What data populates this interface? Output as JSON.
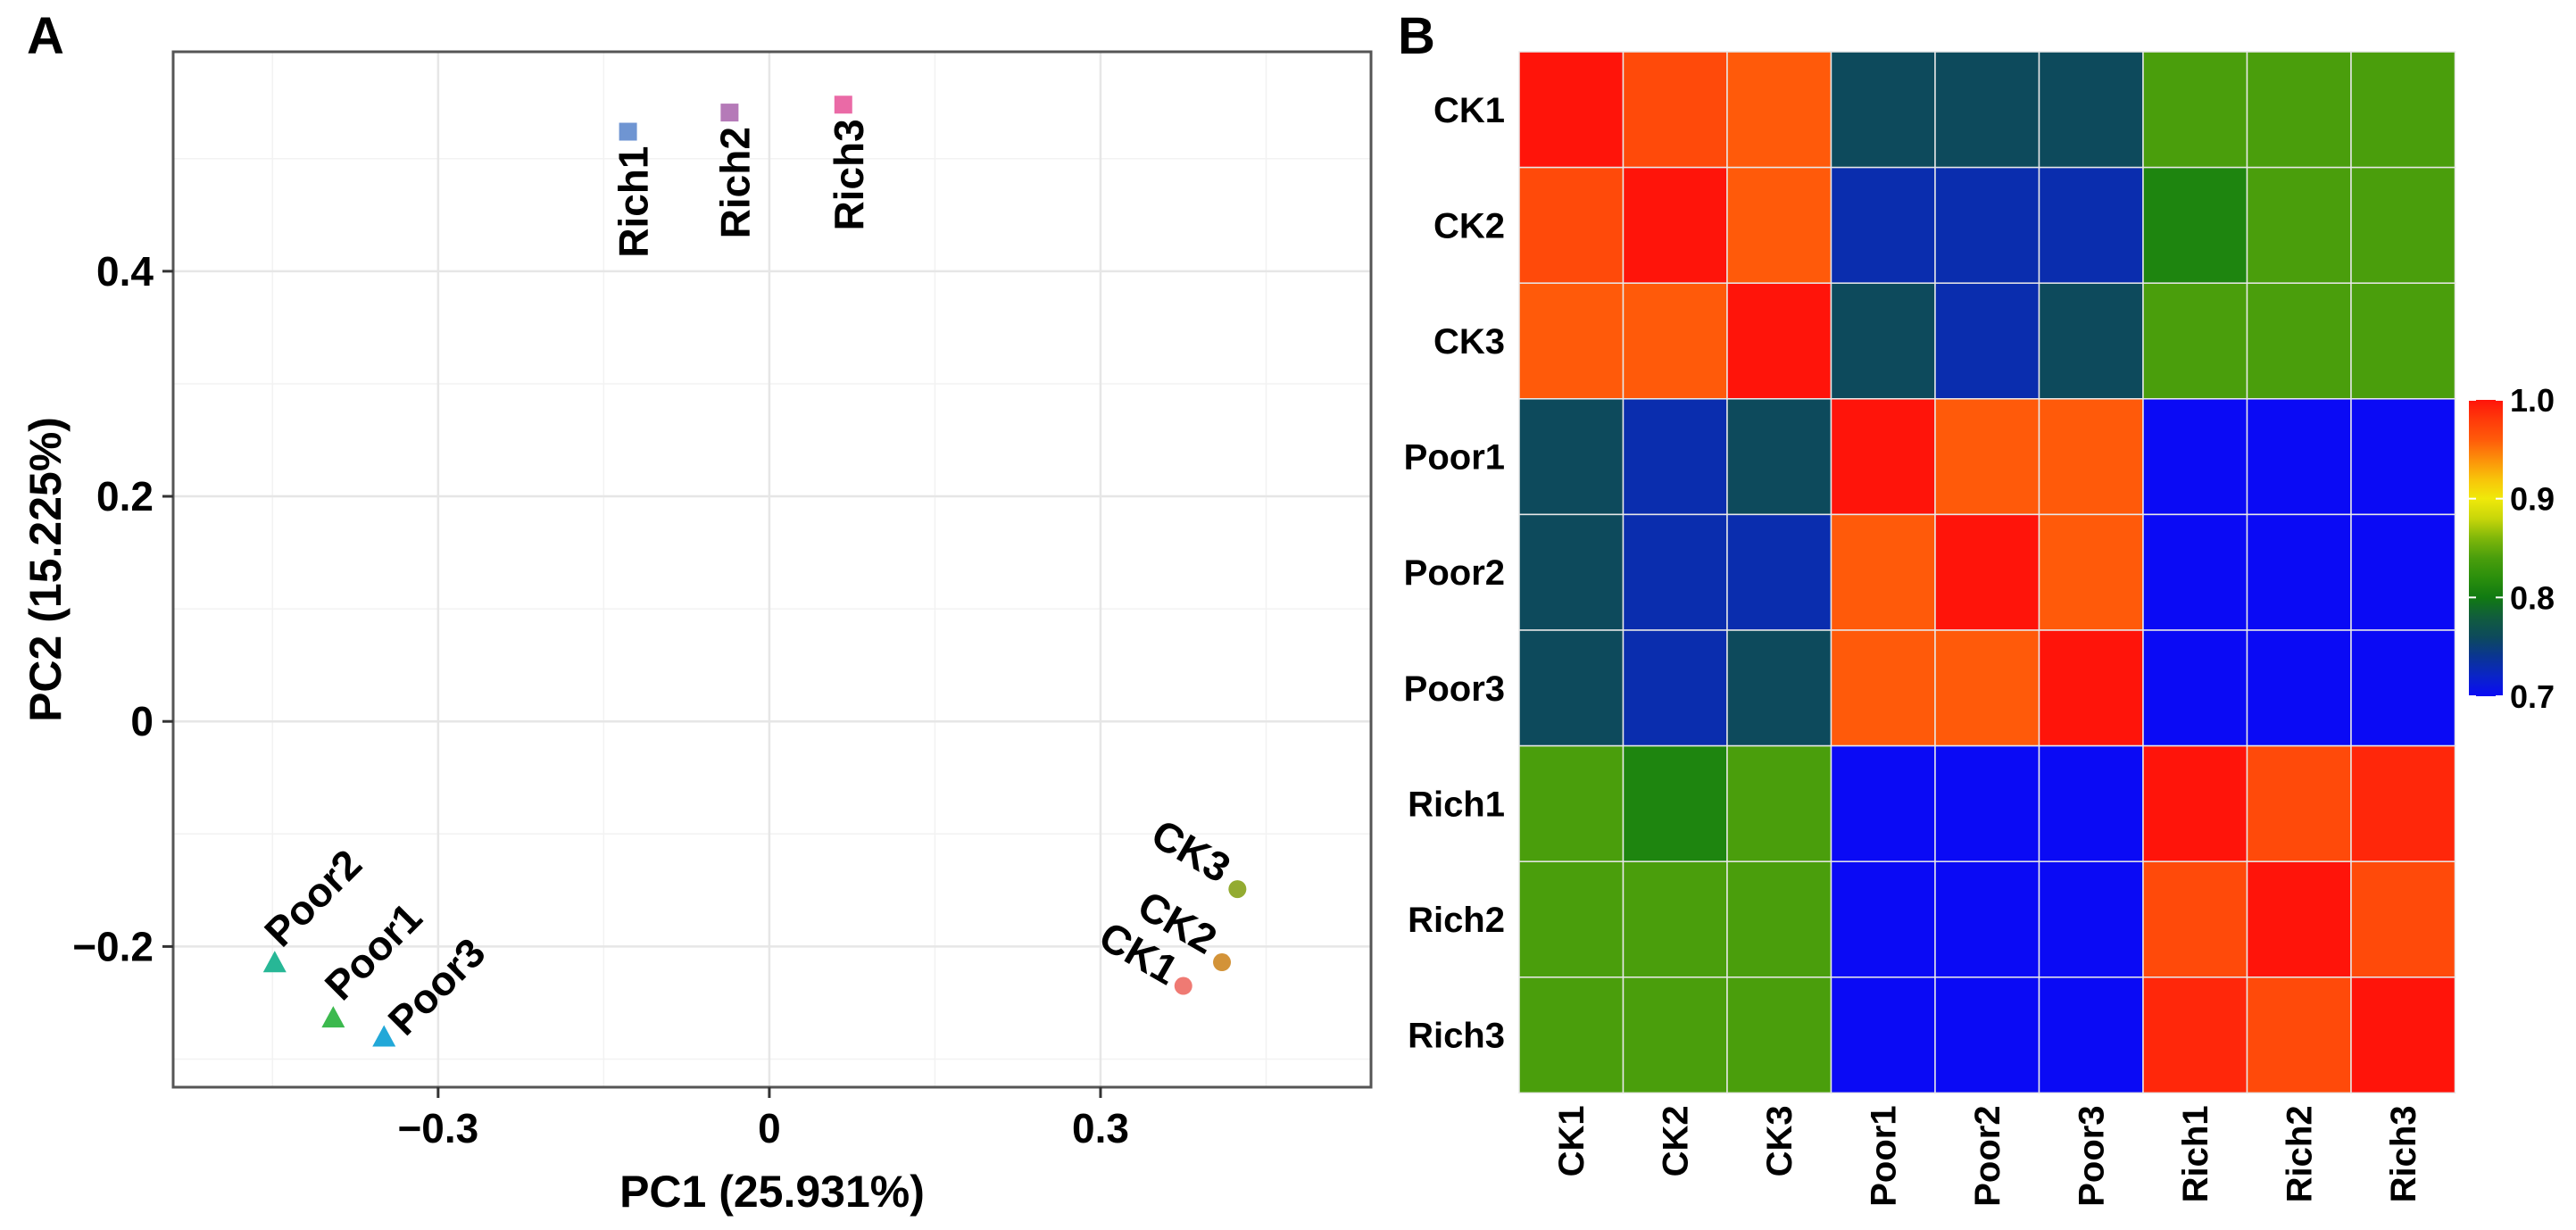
{
  "chart_data": [
    {
      "panel": "A",
      "type": "scatter",
      "title": "",
      "xlabel": "PC1 (25.931%)",
      "ylabel": "PC2 (15.225%)",
      "xlim": [
        -0.54,
        0.545
      ],
      "ylim": [
        -0.325,
        0.595
      ],
      "xticks": [
        -0.3,
        0,
        0.3
      ],
      "xtick_labels": [
        "−0.3",
        "0",
        "0.3"
      ],
      "yticks": [
        -0.2,
        0,
        0.2,
        0.4
      ],
      "ytick_labels": [
        "−0.2",
        "0",
        "0.2",
        "0.4"
      ],
      "grid": true,
      "points": [
        {
          "name": "Rich1",
          "x": -0.128,
          "y": 0.524,
          "color": "#6f95d2",
          "shape": "square",
          "label_angle": -90
        },
        {
          "name": "Rich2",
          "x": -0.036,
          "y": 0.541,
          "color": "#b57ab8",
          "shape": "square",
          "label_angle": -90
        },
        {
          "name": "Rich3",
          "x": 0.067,
          "y": 0.548,
          "color": "#ea6aa6",
          "shape": "square",
          "label_angle": -90
        },
        {
          "name": "Poor2",
          "x": -0.448,
          "y": -0.215,
          "color": "#27b796",
          "shape": "triangle",
          "label_angle": -45
        },
        {
          "name": "Poor1",
          "x": -0.395,
          "y": -0.264,
          "color": "#3cb94e",
          "shape": "triangle",
          "label_angle": -45
        },
        {
          "name": "Poor3",
          "x": -0.349,
          "y": -0.281,
          "color": "#22a8d8",
          "shape": "triangle",
          "label_angle": -45
        },
        {
          "name": "CK3",
          "x": 0.424,
          "y": -0.149,
          "color": "#93ab31",
          "shape": "circle",
          "label_angle": 30
        },
        {
          "name": "CK2",
          "x": 0.41,
          "y": -0.214,
          "color": "#d39338",
          "shape": "circle",
          "label_angle": 30
        },
        {
          "name": "CK1",
          "x": 0.375,
          "y": -0.235,
          "color": "#ef7a73",
          "shape": "circle",
          "label_angle": 30
        }
      ]
    },
    {
      "panel": "B",
      "type": "heatmap",
      "title": "",
      "rows": [
        "CK1",
        "CK2",
        "CK3",
        "Poor1",
        "Poor2",
        "Poor3",
        "Rich1",
        "Rich2",
        "Rich3"
      ],
      "columns": [
        "CK1",
        "CK2",
        "CK3",
        "Poor1",
        "Poor2",
        "Poor3",
        "Rich1",
        "Rich2",
        "Rich3"
      ],
      "values": [
        [
          1.0,
          0.97,
          0.96,
          0.76,
          0.76,
          0.76,
          0.84,
          0.84,
          0.84
        ],
        [
          0.97,
          1.0,
          0.96,
          0.73,
          0.73,
          0.73,
          0.81,
          0.84,
          0.84
        ],
        [
          0.96,
          0.96,
          1.0,
          0.76,
          0.73,
          0.76,
          0.84,
          0.84,
          0.84
        ],
        [
          0.76,
          0.73,
          0.76,
          1.0,
          0.96,
          0.96,
          0.7,
          0.7,
          0.7
        ],
        [
          0.76,
          0.73,
          0.73,
          0.96,
          1.0,
          0.96,
          0.7,
          0.7,
          0.7
        ],
        [
          0.76,
          0.73,
          0.76,
          0.96,
          0.96,
          1.0,
          0.7,
          0.7,
          0.7
        ],
        [
          0.84,
          0.81,
          0.84,
          0.7,
          0.7,
          0.7,
          1.0,
          0.97,
          0.99
        ],
        [
          0.84,
          0.84,
          0.84,
          0.7,
          0.7,
          0.7,
          0.97,
          1.0,
          0.97
        ],
        [
          0.84,
          0.84,
          0.84,
          0.7,
          0.7,
          0.7,
          0.99,
          0.97,
          1.0
        ]
      ],
      "colorbar": {
        "range": [
          0.7,
          1.0
        ],
        "ticks": [
          1.0,
          0.9,
          0.8,
          0.7
        ],
        "tick_labels": [
          "1.0",
          "0.9",
          "0.8",
          "0.7"
        ],
        "stops": [
          {
            "v": 0.7,
            "color": "#0a0af5"
          },
          {
            "v": 0.72,
            "color": "#0a24c8"
          },
          {
            "v": 0.74,
            "color": "#0a3593"
          },
          {
            "v": 0.76,
            "color": "#0d4a5c"
          },
          {
            "v": 0.78,
            "color": "#115d3d"
          },
          {
            "v": 0.8,
            "color": "#117a12"
          },
          {
            "v": 0.82,
            "color": "#2b8f0c"
          },
          {
            "v": 0.84,
            "color": "#4a9e0c"
          },
          {
            "v": 0.86,
            "color": "#7fb70a"
          },
          {
            "v": 0.88,
            "color": "#c8d60a"
          },
          {
            "v": 0.9,
            "color": "#f0e90a"
          },
          {
            "v": 0.92,
            "color": "#f8c30a"
          },
          {
            "v": 0.94,
            "color": "#fc8f0a"
          },
          {
            "v": 0.96,
            "color": "#ff5a0a"
          },
          {
            "v": 0.98,
            "color": "#ff3a0a"
          },
          {
            "v": 1.0,
            "color": "#ff140a"
          }
        ]
      }
    }
  ],
  "panels": {
    "a": "A",
    "b": "B"
  },
  "colors": {
    "plot_border": "#555555",
    "grid_major": "#e6e6e6",
    "grid_minor": "#f2f2f2",
    "cell_border": "#e8e8e8"
  }
}
